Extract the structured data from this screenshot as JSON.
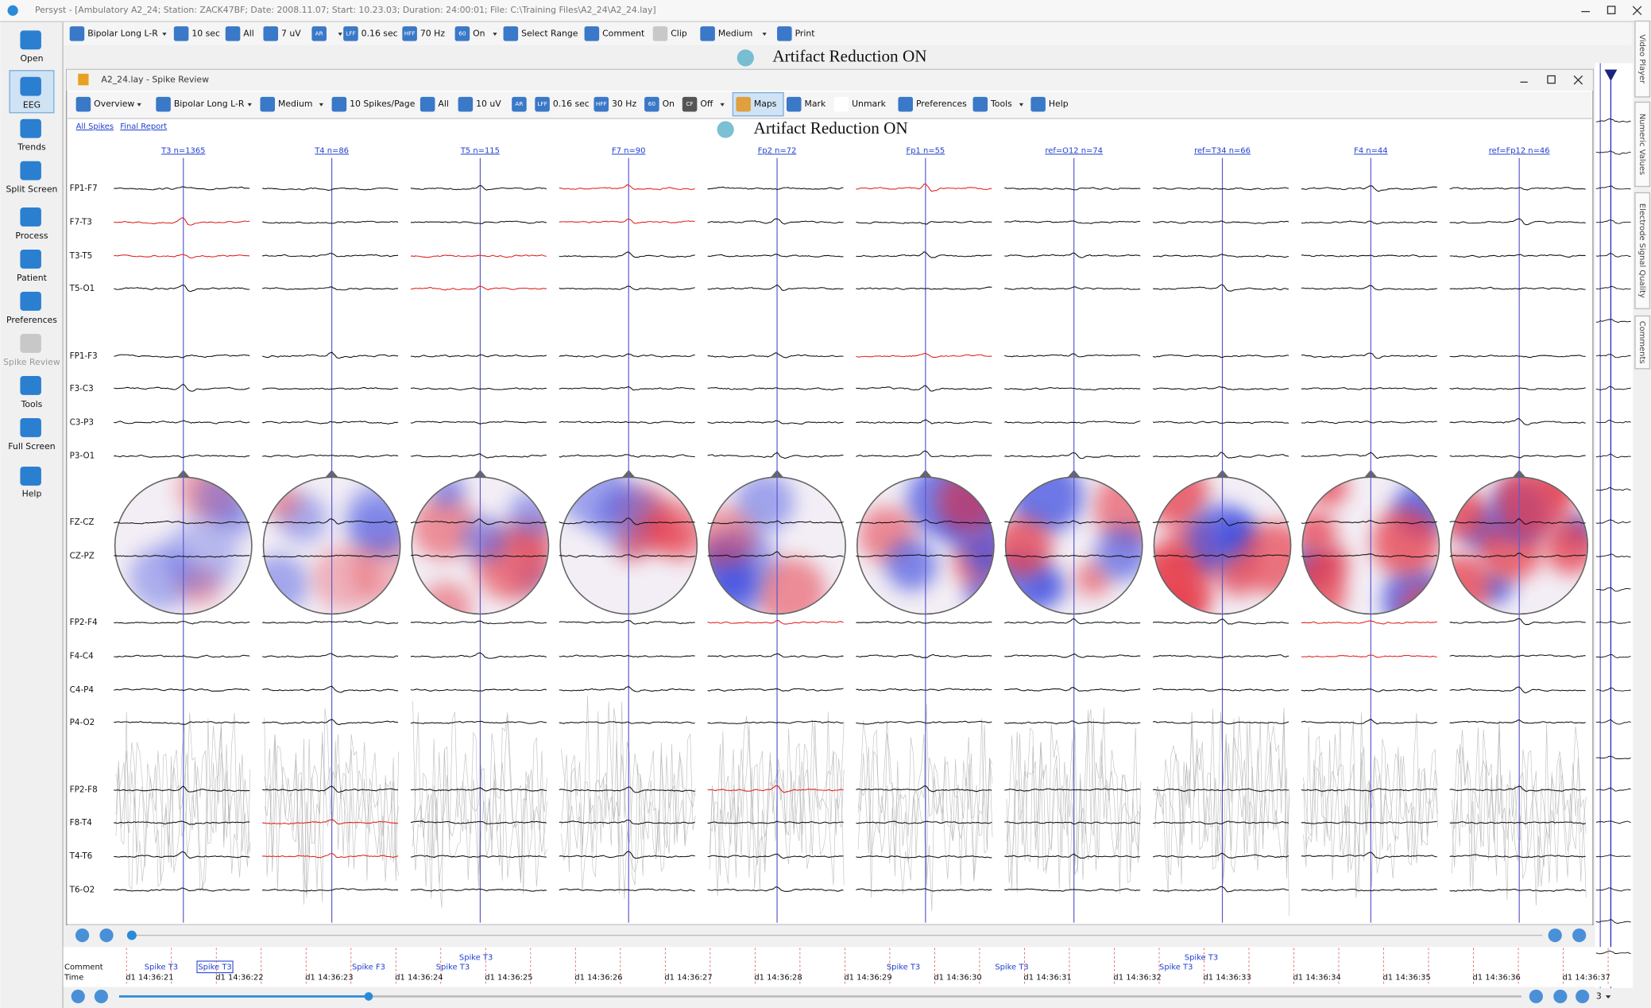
{
  "title_bar": "Persyst - [Ambulatory A2_24; Station: ZACK47BF; Date: 2008.11.07; Start: 10.23.03; Duration: 24:00:01; File: C:\\Training Files\\A2_24\\A2_24.lay]",
  "main_toolbar": [
    {
      "label": "Bipolar Long L-R"
    },
    {
      "label": "10 sec"
    },
    {
      "label": "All"
    },
    {
      "label": "7 uV"
    },
    {
      "icon": "AR"
    },
    {
      "icon": "LFF",
      "label": "0.16 sec"
    },
    {
      "icon": "HFF",
      "label": "70 Hz"
    },
    {
      "icon": "60",
      "label": "On"
    },
    {
      "label": "Select Range"
    },
    {
      "label": "Comment"
    },
    {
      "label": "Clip"
    },
    {
      "label": "Medium"
    },
    {
      "label": "Print"
    }
  ],
  "sidebar": [
    "Open",
    "EEG",
    "Trends",
    "Split Screen",
    "Process",
    "Patient",
    "Preferences",
    "Spike Review",
    "Tools",
    "Full Screen",
    "Help"
  ],
  "banner": "Artifact Reduction ON",
  "spike_window": {
    "title": "A2_24.lay - Spike Review",
    "toolbar": [
      {
        "label": "Overview"
      },
      {
        "label": "Bipolar Long L-R"
      },
      {
        "label": "Medium"
      },
      {
        "label": "10 Spikes/Page"
      },
      {
        "label": "All"
      },
      {
        "label": "10 uV"
      },
      {
        "icon": "AR"
      },
      {
        "icon": "LFF",
        "label": "0.16 sec"
      },
      {
        "icon": "HFF",
        "label": "30 Hz"
      },
      {
        "icon": "60",
        "label": "On"
      },
      {
        "icon": "CF",
        "label": "Off"
      },
      {
        "label": "Maps"
      },
      {
        "label": "Mark"
      },
      {
        "label": "Unmark"
      },
      {
        "label": "Preferences"
      },
      {
        "label": "Tools"
      },
      {
        "label": "Help"
      }
    ],
    "links": [
      "All Spikes",
      "Final Report"
    ],
    "banner": "Artifact Reduction ON",
    "columns": [
      "T3 n=1365",
      "T4 n=86",
      "T5 n=115",
      "F7 n=90",
      "Fp2 n=72",
      "Fp1 n=55",
      "ref=O12 n=74",
      "ref=T34 n=66",
      "F4 n=44",
      "ref=Fp12 n=46"
    ],
    "channels": [
      "FP1-F7",
      "F7-T3",
      "T3-T5",
      "T5-O1",
      "FP1-F3",
      "F3-C3",
      "C3-P3",
      "P3-O1",
      "FZ-CZ",
      "CZ-PZ",
      "FP2-F4",
      "F4-C4",
      "C4-P4",
      "P4-O2",
      "FP2-F8",
      "F8-T4",
      "T4-T6",
      "T6-O2"
    ]
  },
  "timeline": {
    "row_labels": [
      "Comment",
      "Time"
    ],
    "comments": [
      "Spike T3",
      "Spike T3",
      "Spike F3",
      "Spike T3",
      "Spike T3",
      "Spike T3",
      "Spike T3",
      "Spike T3",
      "Spike T3"
    ],
    "times": [
      "d1 14:36:21",
      "d1 14:36:22",
      "d1 14:36:23",
      "d1 14:36:24",
      "d1 14:36:25",
      "d1 14:36:26",
      "d1 14:36:27",
      "d1 14:36:28",
      "d1 14:36:29",
      "d1 14:36:30",
      "d1 14:36:31",
      "d1 14:36:32",
      "d1 14:36:33",
      "d1 14:36:34",
      "d1 14:36:35",
      "d1 14:36:36",
      "d1 14:36:37"
    ]
  },
  "page_number": "3",
  "side_tabs": [
    "Video Player",
    "Numeric Values",
    "Electrode Signal Quality",
    "Comments"
  ]
}
